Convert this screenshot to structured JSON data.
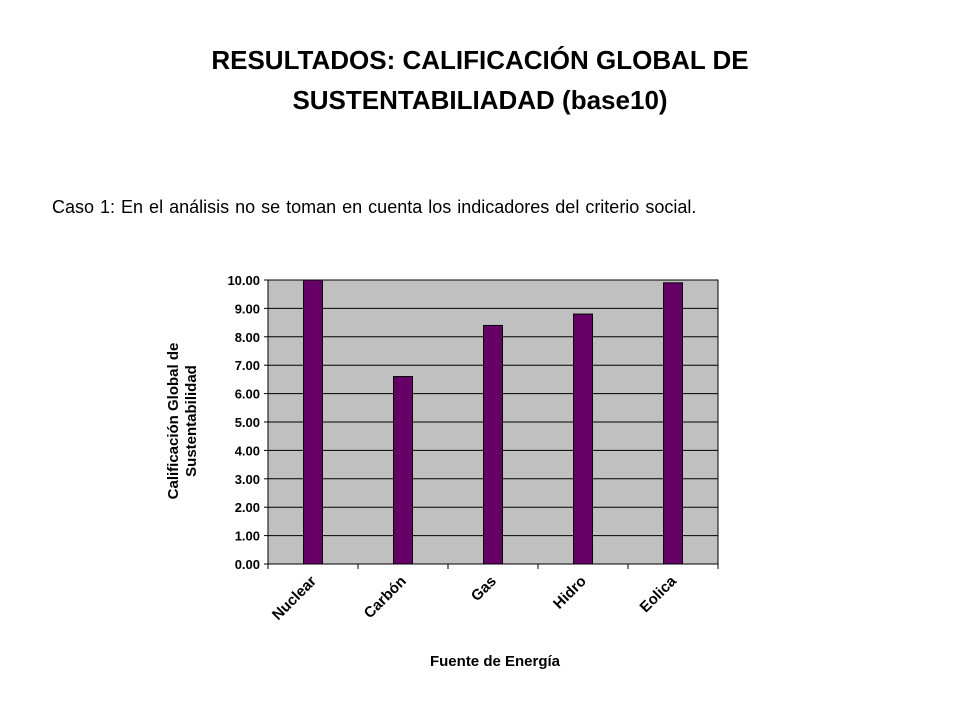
{
  "slide": {
    "title_line1": "RESULTADOS: CALIFICACIÓN GLOBAL DE",
    "title_line2": "SUSTENTABILIADAD (base10)",
    "subtitle": "Caso 1: En el análisis no se toman en cuenta los indicadores del criterio social."
  },
  "chart_data": {
    "type": "bar",
    "categories": [
      "Nuclear",
      "Carbón",
      "Gas",
      "Hidro",
      "Eolica"
    ],
    "values": [
      10.0,
      6.6,
      8.4,
      8.8,
      9.9
    ],
    "xlabel": "Fuente de Energía",
    "ylabel_line1": "Calificación Global de",
    "ylabel_line2": "Sustentabilidad",
    "ylim": [
      0,
      10
    ],
    "yticks": [
      "0.00",
      "1.00",
      "2.00",
      "3.00",
      "4.00",
      "5.00",
      "6.00",
      "7.00",
      "8.00",
      "9.00",
      "10.00"
    ],
    "grid": true,
    "plot_background": "#c0c0c0",
    "bar_color": "#660066",
    "legend": "none"
  }
}
